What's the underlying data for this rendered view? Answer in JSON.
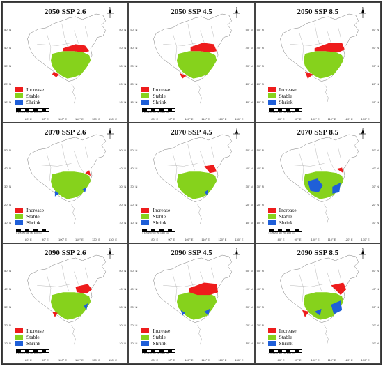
{
  "panels": [
    {
      "title": "2050 SSP 2.6",
      "scenario": "2050-ssp26"
    },
    {
      "title": "2050 SSP 4.5",
      "scenario": "2050-ssp45"
    },
    {
      "title": "2050 SSP 8.5",
      "scenario": "2050-ssp85"
    },
    {
      "title": "2070 SSP 2.6",
      "scenario": "2070-ssp26"
    },
    {
      "title": "2070 SSP 4.5",
      "scenario": "2070-ssp45"
    },
    {
      "title": "2070 SSP 8.5",
      "scenario": "2070-ssp85"
    },
    {
      "title": "2090 SSP 2.6",
      "scenario": "2090-ssp26"
    },
    {
      "title": "2090 SSP 4.5",
      "scenario": "2090-ssp45"
    },
    {
      "title": "2090 SSP 8.5",
      "scenario": "2090-ssp85"
    }
  ],
  "legend": [
    {
      "label": "Increase",
      "color": "#ee1c1c"
    },
    {
      "label": "Stable",
      "color": "#86d21c"
    },
    {
      "label": "Shrink",
      "color": "#1f5fd8"
    }
  ],
  "lon_ticks": [
    "80° E",
    "90° E",
    "100° E",
    "110° E",
    "120° E",
    "130° E"
  ],
  "lat_ticks_left": [
    "50° N",
    "40° N",
    "30° N",
    "20° N",
    "10° N"
  ],
  "lat_ticks_right": [
    "50° N",
    "40° N",
    "30° N",
    "20° N",
    "10° N"
  ],
  "scale_text": "0  125  250    500    750    1000 Km",
  "north_label": "N"
}
